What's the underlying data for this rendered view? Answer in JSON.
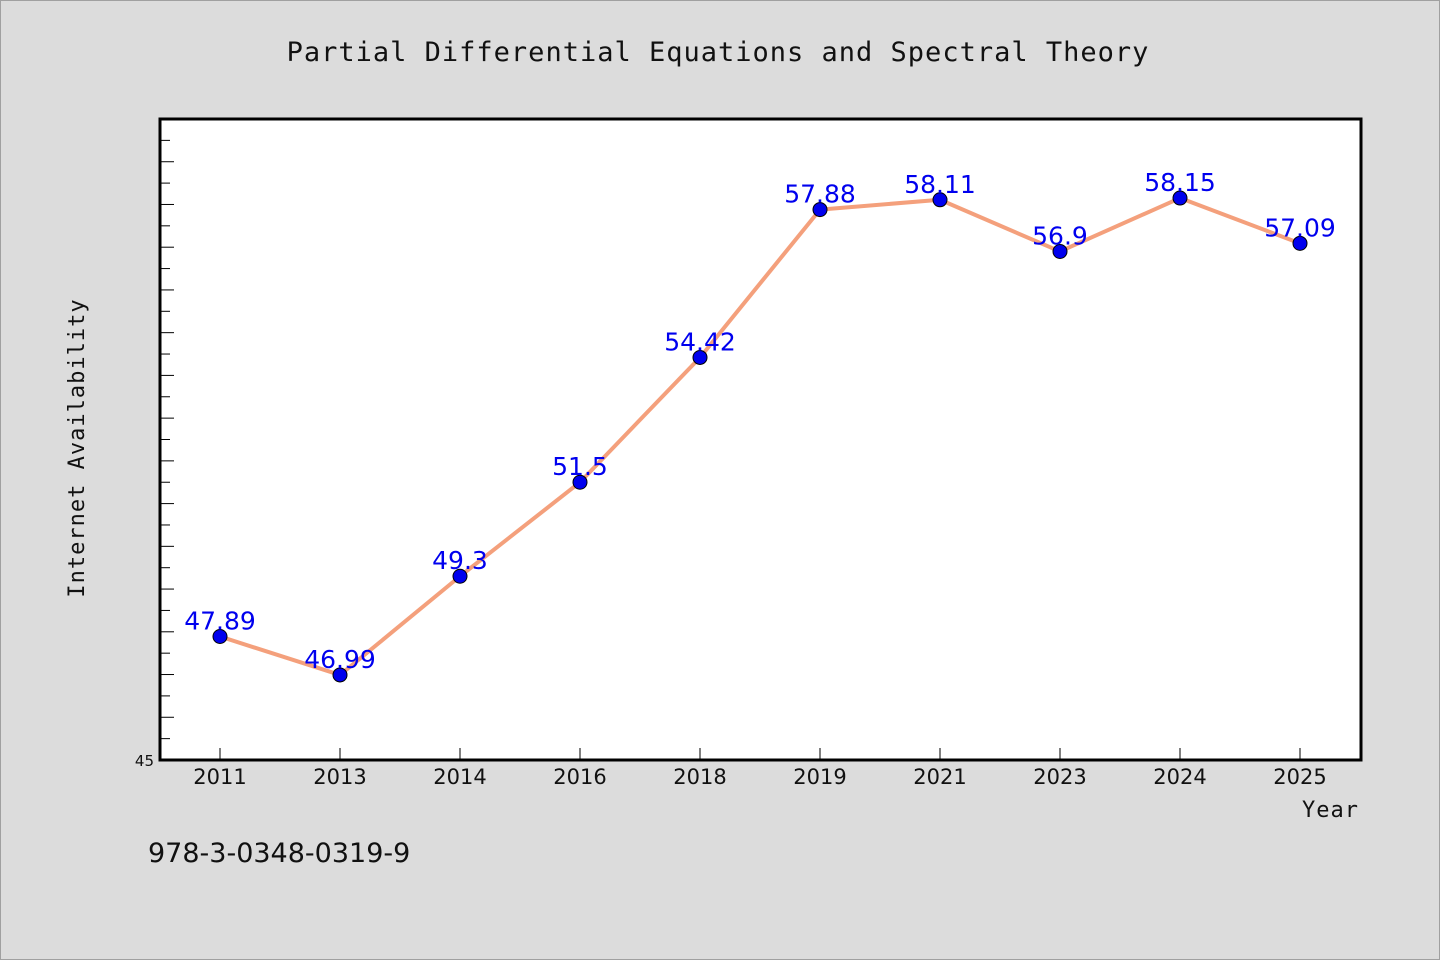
{
  "footer_text": "978-3-0348-0319-9",
  "colors": {
    "line": "#f4a07c",
    "marker": "#0000ee",
    "labels": "#0000ee",
    "plot_bg": "#ffffff",
    "page_bg": "#dcdcdc"
  },
  "chart_data": {
    "type": "line",
    "title": "Partial Differential Equations and Spectral Theory",
    "xlabel": "Year",
    "ylabel": "Internet Availability",
    "categories": [
      "2011",
      "2013",
      "2014",
      "2016",
      "2018",
      "2019",
      "2021",
      "2023",
      "2024",
      "2025"
    ],
    "series": [
      {
        "values": [
          47.89,
          46.99,
          49.3,
          51.5,
          54.42,
          57.88,
          58.11,
          56.9,
          58.15,
          57.09
        ]
      }
    ],
    "data_labels": [
      "47.89",
      "46.99",
      "49.3",
      "51.5",
      "54.42",
      "57.88",
      "58.11",
      "56.9",
      "58.15",
      "57.09"
    ],
    "ylim": [
      45,
      60
    ],
    "y_tick_labels": [
      "45"
    ],
    "grid": false,
    "legend": "none"
  }
}
